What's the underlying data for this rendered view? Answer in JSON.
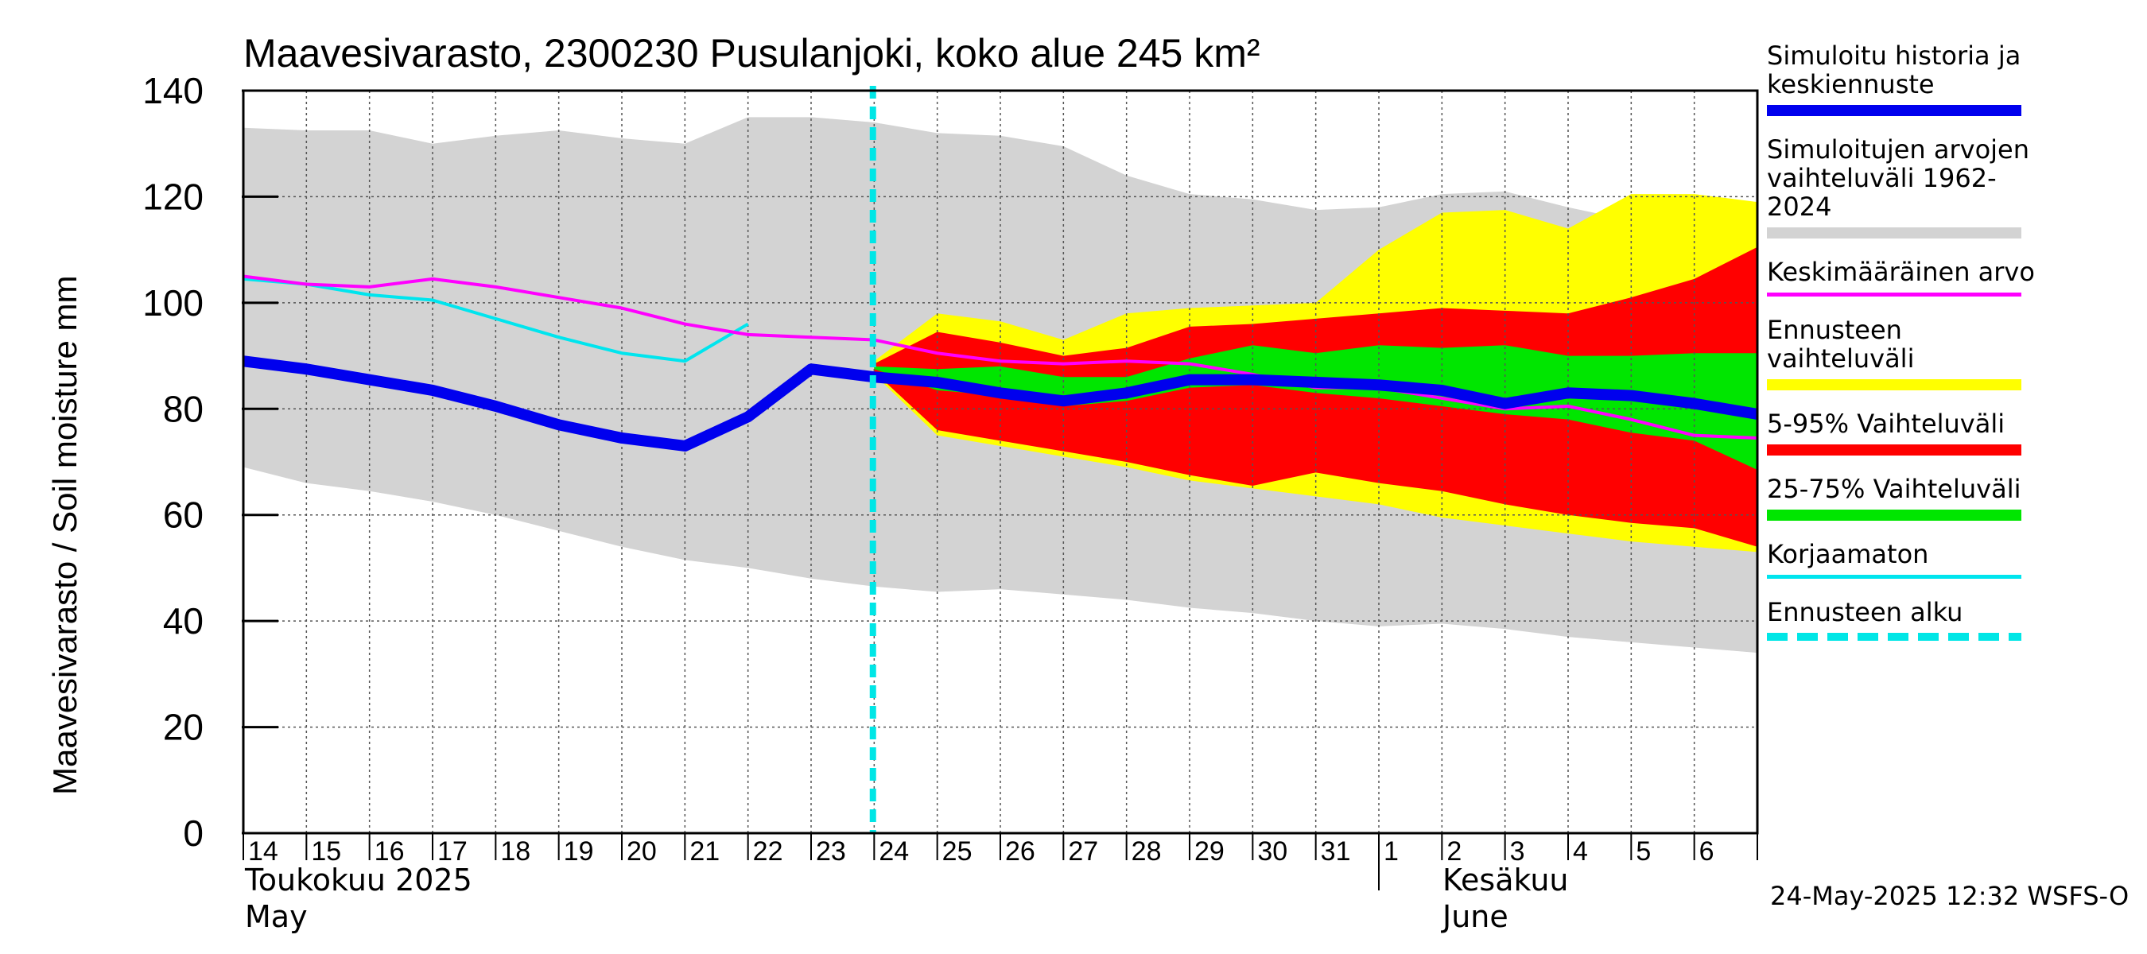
{
  "chart_data": {
    "type": "area",
    "title": "Maavesivarasto, 2300230 Pusulanjoki, koko alue 245 km²",
    "ylabel": "Maavesivarasto / Soil moisture   mm",
    "ylim": [
      0,
      140
    ],
    "yticks": [
      0,
      20,
      40,
      60,
      80,
      100,
      120,
      140
    ],
    "grid": true,
    "x_labels": [
      "14",
      "15",
      "16",
      "17",
      "18",
      "19",
      "20",
      "21",
      "22",
      "23",
      "24",
      "25",
      "26",
      "27",
      "28",
      "29",
      "30",
      "31",
      "1",
      "2",
      "3",
      "4",
      "5",
      "6"
    ],
    "x_days": [
      0,
      1,
      2,
      3,
      4,
      5,
      6,
      7,
      8,
      9,
      10,
      11,
      12,
      13,
      14,
      15,
      16,
      17,
      18,
      19,
      20,
      21,
      22,
      23,
      24
    ],
    "month_labels": [
      {
        "line1": "Toukokuu  2025",
        "line2": "May"
      },
      {
        "line1": "Kesäkuu",
        "line2": "June"
      }
    ],
    "forecast_start_day": 10,
    "series": [
      {
        "name": "Simuloitujen arvojen vaihteluväli 1962-2024",
        "color": "#d3d3d3",
        "upper": [
          133,
          132.5,
          132.5,
          130,
          131.5,
          132.5,
          131,
          130,
          135,
          135,
          134,
          132,
          131.5,
          129.5,
          124,
          120.5,
          119.5,
          117.5,
          118,
          120.5,
          121,
          118,
          115.5,
          114,
          115
        ],
        "lower": [
          69,
          66,
          64.5,
          62.5,
          60,
          57,
          54,
          51.5,
          50,
          48,
          46.5,
          45.5,
          46,
          45,
          44,
          42.5,
          41.5,
          40,
          39,
          39.5,
          38.5,
          37,
          36,
          35,
          34
        ]
      },
      {
        "name": "Ennusteen vaihteluväli",
        "color": "#ffff00",
        "upper": [
          null,
          null,
          null,
          null,
          null,
          null,
          null,
          null,
          null,
          null,
          89,
          98,
          96.5,
          93,
          98,
          99,
          99.5,
          100,
          110,
          117,
          117.5,
          114,
          120.5,
          120.5,
          119
        ],
        "lower": [
          null,
          null,
          null,
          null,
          null,
          null,
          null,
          null,
          null,
          null,
          86.5,
          75,
          73,
          71,
          69,
          66.5,
          65,
          63.5,
          62,
          59.5,
          58,
          56.5,
          55,
          54,
          53
        ]
      },
      {
        "name": "5-95% Vaihteluväli",
        "color": "#ff0000",
        "upper": [
          null,
          null,
          null,
          null,
          null,
          null,
          null,
          null,
          null,
          null,
          88.5,
          94.5,
          92.5,
          90,
          91.5,
          95.5,
          96,
          97,
          98,
          99,
          98.5,
          98,
          101,
          104.5,
          110.5
        ],
        "lower": [
          null,
          null,
          null,
          null,
          null,
          null,
          null,
          null,
          null,
          null,
          87,
          76,
          74,
          72,
          70,
          67.5,
          65.5,
          68,
          66,
          64.5,
          62,
          60,
          58.5,
          57.5,
          54
        ]
      },
      {
        "name": "25-75% Vaihteluväli",
        "color": "#00e600",
        "upper": [
          null,
          null,
          null,
          null,
          null,
          null,
          null,
          null,
          null,
          null,
          88,
          87.5,
          88,
          86,
          86,
          89.5,
          92,
          90.5,
          92,
          91.5,
          92,
          90,
          90,
          90.5,
          90.5
        ],
        "lower": [
          null,
          null,
          null,
          null,
          null,
          null,
          null,
          null,
          null,
          null,
          87.5,
          83.5,
          82.5,
          80.5,
          81.5,
          84,
          84.5,
          83,
          82,
          80.5,
          79,
          78,
          75.5,
          74,
          68.5
        ]
      },
      {
        "name": "Simuloitu historia ja keskiennuste",
        "color": "#0000ee",
        "values": [
          89,
          87.5,
          85.5,
          83.5,
          80.5,
          77,
          74.5,
          73,
          78.5,
          87.5,
          86,
          85,
          83,
          81.5,
          83,
          85.5,
          85.5,
          85,
          84.5,
          83.5,
          81,
          83,
          82.5,
          81,
          79
        ]
      },
      {
        "name": "Keskimääräinen arvo",
        "color": "#ff00ff",
        "values": [
          105,
          103.5,
          103,
          104.5,
          103,
          101,
          99,
          96,
          94,
          93.5,
          93,
          90.5,
          89,
          88.5,
          89,
          88.5,
          86.5,
          84,
          84,
          82,
          80,
          80.5,
          78,
          75,
          74.5
        ]
      },
      {
        "name": "Korjaamaton",
        "color": "#00e5ee",
        "values": [
          104.5,
          103.5,
          101.5,
          100.5,
          97,
          93.5,
          90.5,
          89,
          96,
          null,
          null,
          null,
          null,
          null,
          null,
          null,
          null,
          null,
          null,
          null,
          null,
          null,
          null,
          null,
          null
        ]
      },
      {
        "name": "Ennusteen alku",
        "color": "#00e6e6"
      }
    ]
  },
  "legend": [
    {
      "label": "Simuloitu historia ja\nkeskiennuste",
      "color": "#0000ee",
      "style": "thick"
    },
    {
      "label": "Simuloitujen arvojen\nvaihteluväli 1962-2024",
      "color": "#d3d3d3",
      "style": "thick"
    },
    {
      "label": "Keskimääräinen arvo",
      "color": "#ff00ff",
      "style": "thin"
    },
    {
      "label": "Ennusteen vaihteluväli",
      "color": "#ffff00",
      "style": "thick"
    },
    {
      "label": "5-95% Vaihteluväli",
      "color": "#ff0000",
      "style": "thick"
    },
    {
      "label": "25-75% Vaihteluväli",
      "color": "#00e600",
      "style": "thick"
    },
    {
      "label": "Korjaamaton",
      "color": "#00e5ee",
      "style": "thin"
    },
    {
      "label": "Ennusteen alku",
      "color": "#00e6e6",
      "style": "dashed"
    }
  ],
  "timestamp": "24-May-2025 12:32 WSFS-O"
}
